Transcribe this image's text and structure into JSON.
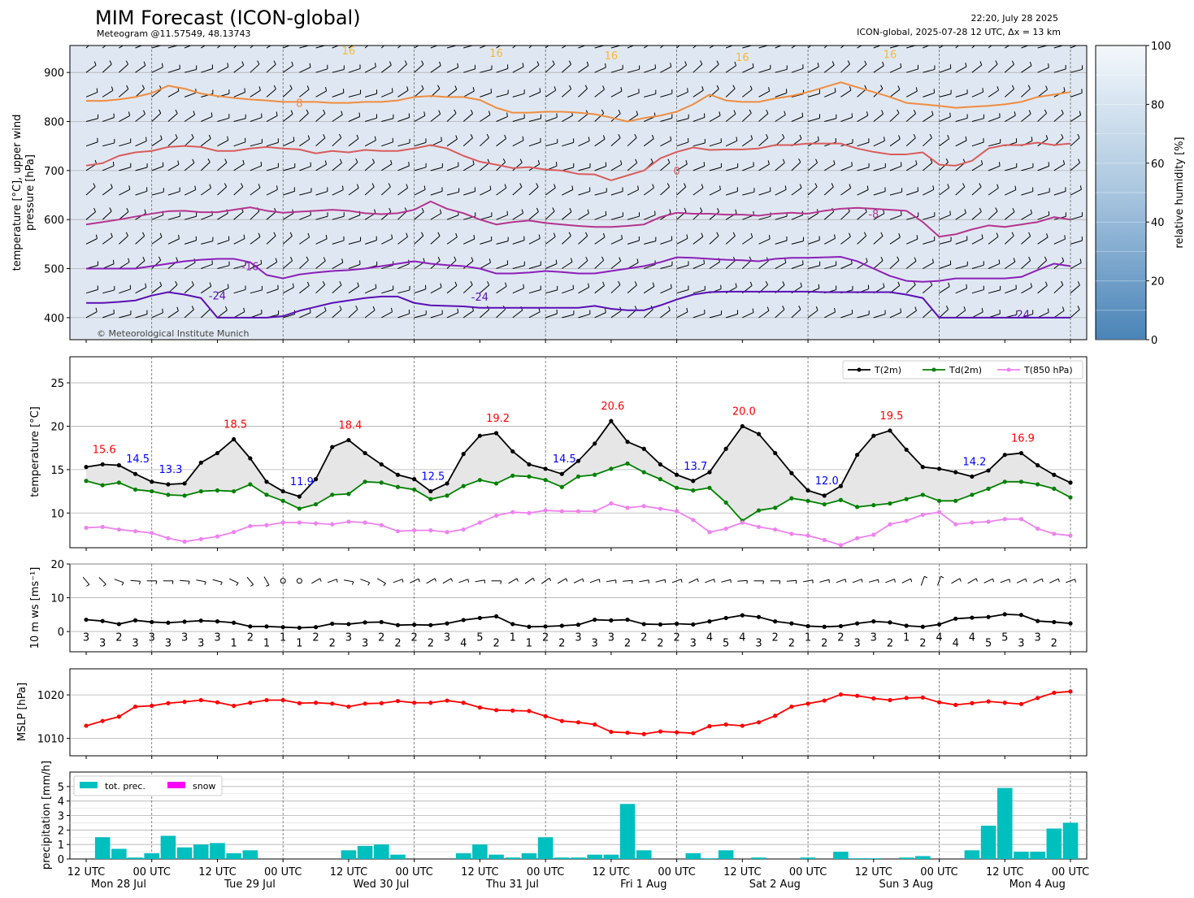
{
  "header": {
    "title": "MIM Forecast (ICON-global)",
    "subtitle": "Meteogram @11.57549, 48.13743",
    "issued": "22:20, July 28 2025",
    "model_info": "ICON-global, 2025-07-28 12 UTC, Δx = 13 km",
    "copyright": "© Meteorological Institute Munich"
  },
  "time_axis": {
    "tick_labels": [
      "12 UTC",
      "00 UTC",
      "12 UTC",
      "00 UTC",
      "12 UTC",
      "00 UTC",
      "12 UTC",
      "00 UTC",
      "12 UTC",
      "00 UTC",
      "12 UTC",
      "00 UTC",
      "12 UTC",
      "00 UTC",
      "12 UTC",
      "00 UTC"
    ],
    "day_labels": [
      "Mon 28 Jul",
      "Tue 29 Jul",
      "Wed 30 Jul",
      "Thu 31 Jul",
      "Fri 1 Aug",
      "Sat 2 Aug",
      "Sun 3 Aug",
      "Mon 4 Aug"
    ]
  },
  "colors": {
    "t2m": "#000000",
    "td2m": "#008000",
    "t850": "#ee82ee",
    "mslp": "#ff0000",
    "precip": "#00bfbf",
    "snow": "#ff00ff",
    "max_label": "#ff0000",
    "min_label": "#0000ff"
  },
  "chart_data": [
    {
      "type": "heatmap",
      "panel": "upper-air",
      "ylabel": "temperature [$^\\circ$C], upper wind\npressure [hPa]",
      "yticks": [
        400,
        500,
        600,
        700,
        800,
        900
      ],
      "ylim": [
        955,
        355
      ],
      "invert_y": true,
      "colorbar": {
        "label": "relative humidity [%]",
        "ticks": [
          0,
          20,
          40,
          60,
          80,
          100
        ],
        "range": [
          0,
          100
        ]
      },
      "isotherm_labels": [
        {
          "level": -24,
          "text": "-24"
        },
        {
          "level": -16,
          "text": "-16"
        },
        {
          "level": -8,
          "text": "-8"
        },
        {
          "level": 0,
          "text": "0"
        },
        {
          "level": 8,
          "text": "8"
        },
        {
          "level": 16,
          "text": "16"
        }
      ],
      "isotherms": [
        {
          "level": -24,
          "pressure": [
            430,
            430,
            432,
            435,
            445,
            452,
            447,
            440,
            400,
            400,
            400,
            400,
            403,
            414,
            422,
            430,
            435,
            440,
            443,
            443,
            430,
            425,
            424,
            423,
            420,
            420,
            420,
            420,
            420,
            420,
            420,
            424,
            418,
            415,
            415,
            425,
            437,
            447,
            452,
            453,
            453,
            453,
            453,
            453,
            453,
            452,
            452,
            452,
            452,
            452,
            447,
            440,
            400,
            400,
            400,
            400,
            400,
            400,
            400,
            400,
            400
          ]
        },
        {
          "level": -16,
          "pressure": [
            500,
            500,
            500,
            500,
            505,
            510,
            515,
            518,
            520,
            520,
            513,
            487,
            480,
            488,
            492,
            495,
            497,
            500,
            505,
            510,
            515,
            510,
            507,
            505,
            500,
            490,
            490,
            492,
            495,
            493,
            490,
            490,
            495,
            500,
            505,
            513,
            523,
            522,
            520,
            518,
            517,
            515,
            520,
            522,
            522,
            523,
            524,
            515,
            500,
            485,
            475,
            473,
            475,
            480,
            480,
            480,
            480,
            483,
            497,
            510,
            505
          ]
        },
        {
          "level": -8,
          "pressure": [
            590,
            595,
            600,
            606,
            612,
            617,
            618,
            615,
            615,
            620,
            625,
            618,
            614,
            616,
            618,
            620,
            618,
            613,
            611,
            613,
            620,
            637,
            622,
            613,
            600,
            590,
            595,
            598,
            593,
            590,
            587,
            585,
            585,
            587,
            590,
            605,
            614,
            612,
            612,
            610,
            610,
            608,
            612,
            614,
            612,
            618,
            622,
            624,
            622,
            620,
            618,
            595,
            565,
            570,
            580,
            588,
            585,
            590,
            595,
            605,
            600
          ]
        },
        {
          "level": 0,
          "pressure": [
            710,
            715,
            730,
            737,
            740,
            748,
            750,
            748,
            740,
            740,
            745,
            748,
            745,
            743,
            735,
            740,
            737,
            742,
            740,
            740,
            745,
            752,
            745,
            730,
            718,
            712,
            705,
            707,
            702,
            700,
            693,
            692,
            680,
            690,
            700,
            725,
            738,
            747,
            742,
            743,
            743,
            745,
            752,
            752,
            755,
            755,
            755,
            745,
            738,
            733,
            733,
            737,
            712,
            710,
            720,
            745,
            752,
            752,
            757,
            752,
            755
          ]
        },
        {
          "level": 8,
          "pressure": [
            842,
            842,
            845,
            850,
            858,
            873,
            867,
            857,
            852,
            848,
            845,
            843,
            840,
            840,
            840,
            838,
            838,
            840,
            840,
            843,
            850,
            852,
            850,
            850,
            844,
            828,
            818,
            818,
            820,
            820,
            818,
            815,
            808,
            800,
            807,
            812,
            820,
            835,
            855,
            843,
            840,
            840,
            847,
            852,
            860,
            870,
            880,
            870,
            860,
            850,
            838,
            835,
            832,
            828,
            830,
            832,
            835,
            840,
            850,
            855,
            860
          ]
        }
      ],
      "wind_barb_levels": [
        400,
        450,
        500,
        550,
        600,
        650,
        700,
        750,
        800,
        850,
        900,
        950
      ]
    },
    {
      "type": "line",
      "panel": "temperature",
      "ylabel": "temperature [$^\\circ$C]",
      "yticks": [
        10,
        15,
        20,
        25
      ],
      "ylim": [
        6,
        28
      ],
      "legend": "top-right",
      "legend_entries": [
        "T(2m)",
        "Td(2m)",
        "T(850 hPa)"
      ],
      "series": [
        {
          "name": "T(2m)",
          "values": [
            15.3,
            15.6,
            15.5,
            14.5,
            13.6,
            13.3,
            13.4,
            15.8,
            16.9,
            18.5,
            16.3,
            13.6,
            12.5,
            11.9,
            13.9,
            17.6,
            18.4,
            16.9,
            15.6,
            14.4,
            13.9,
            12.5,
            13.4,
            16.8,
            18.9,
            19.2,
            17.1,
            15.6,
            15.1,
            14.5,
            16.0,
            18.0,
            20.6,
            18.2,
            17.4,
            15.6,
            14.4,
            13.7,
            14.7,
            17.4,
            20.0,
            19.1,
            16.9,
            14.6,
            12.6,
            12.0,
            13.1,
            16.7,
            18.9,
            19.5,
            17.3,
            15.3,
            15.1,
            14.7,
            14.2,
            14.9,
            16.7,
            16.9,
            15.5,
            14.4,
            13.5
          ]
        },
        {
          "name": "Td(2m)",
          "values": [
            13.7,
            13.2,
            13.5,
            12.7,
            12.5,
            12.1,
            12.0,
            12.5,
            12.6,
            12.5,
            13.3,
            12.1,
            11.4,
            10.5,
            11.0,
            12.1,
            12.2,
            13.6,
            13.5,
            13.0,
            12.7,
            11.6,
            12.0,
            13.1,
            13.8,
            13.4,
            14.3,
            14.2,
            13.8,
            13.0,
            14.2,
            14.4,
            15.1,
            15.7,
            14.7,
            13.9,
            12.9,
            12.6,
            12.9,
            11.2,
            9.1,
            10.3,
            10.6,
            11.7,
            11.4,
            11.0,
            11.5,
            10.7,
            10.9,
            11.1,
            11.6,
            12.1,
            11.4,
            11.4,
            12.1,
            12.8,
            13.6,
            13.6,
            13.3,
            12.8,
            11.8
          ]
        },
        {
          "name": "T(850 hPa)",
          "values": [
            8.3,
            8.4,
            8.1,
            7.9,
            7.7,
            7.1,
            6.7,
            7.0,
            7.3,
            7.8,
            8.5,
            8.6,
            8.9,
            8.9,
            8.8,
            8.7,
            9.0,
            8.9,
            8.6,
            7.9,
            8.0,
            8.0,
            7.8,
            8.1,
            8.9,
            9.7,
            10.1,
            10.0,
            10.3,
            10.2,
            10.2,
            10.2,
            11.1,
            10.6,
            10.8,
            10.5,
            10.2,
            9.2,
            7.8,
            8.2,
            8.9,
            8.4,
            8.1,
            7.6,
            7.4,
            6.9,
            6.3,
            7.1,
            7.5,
            8.7,
            9.1,
            9.8,
            10.1,
            8.7,
            8.9,
            9.0,
            9.3,
            9.3,
            8.2,
            7.6,
            7.4
          ]
        }
      ],
      "annotations_max": [
        {
          "index": 1,
          "text": "15.6"
        },
        {
          "index": 9,
          "text": "18.5"
        },
        {
          "index": 16,
          "text": "18.4"
        },
        {
          "index": 25,
          "text": "19.2"
        },
        {
          "index": 32,
          "text": "20.6"
        },
        {
          "index": 40,
          "text": "20.0"
        },
        {
          "index": 49,
          "text": "19.5"
        },
        {
          "index": 57,
          "text": "16.9"
        }
      ],
      "annotations_min": [
        {
          "index": 3,
          "text": "14.5"
        },
        {
          "index": 5,
          "text": "13.3"
        },
        {
          "index": 13,
          "text": "11.9"
        },
        {
          "index": 21,
          "text": "12.5"
        },
        {
          "index": 29,
          "text": "14.5"
        },
        {
          "index": 37,
          "text": "13.7"
        },
        {
          "index": 45,
          "text": "12.0"
        },
        {
          "index": 54,
          "text": "14.2"
        }
      ]
    },
    {
      "type": "line",
      "panel": "wind",
      "ylabel": "10 m ws [ms$^{-1}$]",
      "yticks": [
        0,
        10,
        20
      ],
      "ylim": [
        -6,
        20
      ],
      "series": [
        {
          "name": "",
          "values": [
            3.5,
            3.1,
            2.2,
            3.3,
            2.8,
            2.6,
            2.9,
            3.2,
            3.0,
            2.6,
            1.5,
            1.5,
            1.3,
            1.1,
            1.3,
            2.3,
            2.2,
            2.7,
            2.8,
            1.9,
            2.0,
            1.9,
            2.4,
            3.4,
            4.0,
            4.5,
            2.2,
            1.4,
            1.5,
            1.7,
            2.0,
            3.5,
            3.3,
            3.5,
            2.2,
            2.1,
            2.3,
            2.1,
            3.0,
            4.0,
            4.8,
            4.3,
            3.0,
            2.4,
            1.6,
            1.4,
            1.6,
            2.4,
            3.0,
            2.7,
            1.7,
            1.4,
            2.1,
            3.8,
            4.1,
            4.3,
            5.1,
            4.9,
            3.1,
            2.8,
            2.4
          ]
        }
      ],
      "gust_labels": [
        "3",
        "3",
        "2",
        "3",
        "3",
        "3",
        "3",
        "3",
        "3",
        "1",
        "2",
        "1",
        "1",
        "1",
        "2",
        "2",
        "3",
        "3",
        "2",
        "2",
        "2",
        "2",
        "3",
        "4",
        "5",
        "2",
        "1",
        "1",
        "2",
        "2",
        "3",
        "3",
        "3",
        "2",
        "2",
        "2",
        "2",
        "3",
        "4",
        "5",
        "4",
        "3",
        "2",
        "2",
        "1",
        "2",
        "2",
        "3",
        "3",
        "2",
        "1",
        "2",
        "4",
        "4",
        "4",
        "5",
        "5",
        "3",
        "3",
        "2"
      ],
      "wind_dir_deg": [
        320,
        315,
        290,
        275,
        270,
        270,
        275,
        280,
        285,
        295,
        320,
        330,
        null,
        null,
        240,
        250,
        280,
        290,
        300,
        250,
        245,
        240,
        240,
        250,
        260,
        270,
        240,
        235,
        235,
        240,
        245,
        250,
        260,
        265,
        260,
        255,
        250,
        245,
        250,
        255,
        265,
        270,
        270,
        265,
        260,
        255,
        250,
        250,
        255,
        250,
        245,
        200,
        200,
        240,
        240,
        245,
        250,
        245,
        245,
        245,
        250
      ]
    },
    {
      "type": "line",
      "panel": "mslp",
      "ylabel": "MSLP [hPa]",
      "yticks": [
        1010,
        1020
      ],
      "ylim": [
        1006,
        1026
      ],
      "series": [
        {
          "name": "",
          "values": [
            1012.9,
            1014.0,
            1015.0,
            1017.3,
            1017.5,
            1018.1,
            1018.4,
            1018.8,
            1018.3,
            1017.5,
            1018.2,
            1018.8,
            1018.8,
            1018.1,
            1018.2,
            1018.0,
            1017.3,
            1018.0,
            1018.1,
            1018.6,
            1018.2,
            1018.2,
            1018.7,
            1018.2,
            1017.1,
            1016.5,
            1016.4,
            1016.3,
            1015.1,
            1014.0,
            1013.7,
            1013.2,
            1011.5,
            1011.3,
            1011.0,
            1011.6,
            1011.4,
            1011.2,
            1012.8,
            1013.2,
            1012.9,
            1013.7,
            1015.2,
            1017.3,
            1018.0,
            1018.7,
            1020.1,
            1019.8,
            1019.2,
            1018.8,
            1019.3,
            1019.4,
            1018.3,
            1017.7,
            1018.1,
            1018.5,
            1018.2,
            1017.9,
            1019.3,
            1020.5,
            1020.8
          ]
        }
      ]
    },
    {
      "type": "bar",
      "panel": "precipitation",
      "ylabel": "precipitation [mm/h]",
      "yticks": [
        0,
        1,
        2,
        3,
        4,
        5
      ],
      "ylim": [
        0,
        6
      ],
      "legend": "top-left",
      "legend_entries": [
        "tot. prec.",
        "snow"
      ],
      "series": [
        {
          "name": "tot. prec.",
          "values": [
            0,
            1.5,
            0.7,
            0.1,
            0.4,
            1.6,
            0.8,
            1.0,
            1.1,
            0.4,
            0.6,
            0,
            0,
            0,
            0,
            0,
            0.6,
            0.9,
            1.0,
            0.3,
            0,
            0,
            0,
            0.4,
            1.0,
            0.3,
            0.1,
            0.4,
            1.5,
            0.1,
            0.1,
            0.3,
            0.3,
            3.8,
            0.6,
            0,
            0,
            0.4,
            0.05,
            0.6,
            0,
            0.1,
            0,
            0,
            0.1,
            0,
            0.5,
            0.05,
            0.05,
            0,
            0.1,
            0.2,
            0,
            0,
            0.6,
            2.3,
            4.9,
            0.5,
            0.5,
            2.1,
            2.5
          ]
        },
        {
          "name": "snow",
          "values": [
            0,
            0,
            0,
            0,
            0,
            0,
            0,
            0,
            0,
            0,
            0,
            0,
            0,
            0,
            0,
            0,
            0,
            0,
            0,
            0,
            0,
            0,
            0,
            0,
            0,
            0,
            0,
            0,
            0,
            0,
            0,
            0,
            0,
            0,
            0,
            0,
            0,
            0,
            0,
            0,
            0,
            0,
            0,
            0,
            0,
            0,
            0,
            0,
            0,
            0,
            0,
            0,
            0,
            0,
            0,
            0,
            0,
            0,
            0,
            0,
            0
          ]
        }
      ]
    }
  ]
}
